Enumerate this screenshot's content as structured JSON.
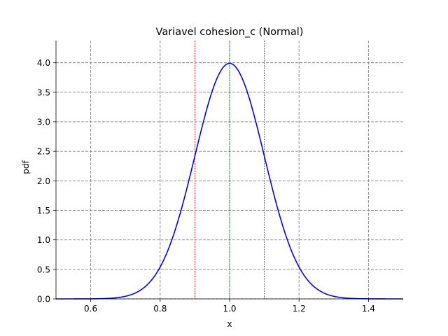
{
  "chart_data": {
    "type": "line",
    "title": "Variavel cohesion_c (Normal)",
    "xlabel": "x",
    "ylabel": "pdf",
    "xlim": [
      0.5,
      1.5
    ],
    "ylim": [
      0.0,
      4.375
    ],
    "x_ticks": [
      0.6,
      0.8,
      1.0,
      1.2,
      1.4
    ],
    "x_tick_labels": [
      "0.6",
      "0.8",
      "1.0",
      "1.2",
      "1.4"
    ],
    "y_ticks": [
      0.0,
      0.5,
      1.0,
      1.5,
      2.0,
      2.5,
      3.0,
      3.5,
      4.0
    ],
    "y_tick_labels": [
      "0.0",
      "0.5",
      "1.0",
      "1.5",
      "2.0",
      "2.5",
      "3.0",
      "3.5",
      "4.0"
    ],
    "grid": true,
    "grid_style": "dashed",
    "distribution": {
      "name": "Normal",
      "mean": 1.0,
      "std": 0.1
    },
    "series": [
      {
        "color": "#0000ff",
        "style": "solid",
        "type": "normal_pdf"
      }
    ],
    "vertical_lines": [
      {
        "x": 0.9,
        "color": "#ff0000",
        "style": "dotted",
        "role": "mean minus one std"
      },
      {
        "x": 1.0,
        "color": "#008000",
        "style": "dotted",
        "role": "mean"
      },
      {
        "x": 1.1,
        "color": "#ff0000",
        "style": "dotted",
        "role": "mean plus one std"
      }
    ]
  }
}
